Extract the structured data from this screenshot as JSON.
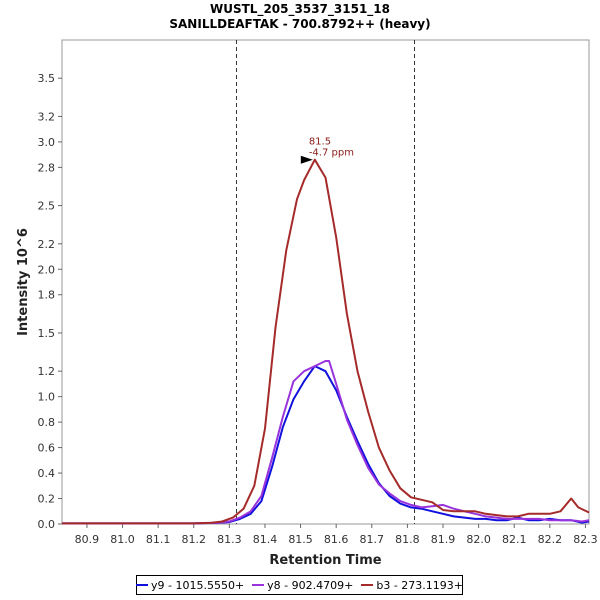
{
  "chart_data": {
    "type": "line",
    "title": "WUSTL_205_3537_3151_18",
    "subtitle": "SANILLDEAFTAK - 700.8792++ (heavy)",
    "xlabel": "Retention Time",
    "ylabel": "Intensity 10^6",
    "xlim": [
      80.83,
      82.31
    ],
    "ylim": [
      0,
      3.8
    ],
    "x_ticks": [
      "80.9",
      "81.0",
      "81.1",
      "81.2",
      "81.3",
      "81.4",
      "81.5",
      "81.6",
      "81.7",
      "81.8",
      "81.9",
      "82.0",
      "82.1",
      "82.2",
      "82.3"
    ],
    "y_ticks": [
      "0.0",
      "0.2",
      "0.4",
      "0.6",
      "0.8",
      "1.0",
      "1.2",
      "1.5",
      "1.8",
      "2.0",
      "2.2",
      "2.5",
      "2.8",
      "3.0",
      "3.2",
      "3.5"
    ],
    "boundary_lines": [
      81.32,
      81.82
    ],
    "annotation": {
      "x": 81.54,
      "y": 2.86,
      "lines": [
        "81.5",
        "-4.7 ppm"
      ],
      "color": "#8b1a1a"
    },
    "grid": false,
    "legend_position": "bottom",
    "series": [
      {
        "name": "y9 - 1015.5550+",
        "color": "#1111dd",
        "x": [
          80.83,
          81.2,
          81.27,
          81.3,
          81.33,
          81.36,
          81.39,
          81.42,
          81.45,
          81.48,
          81.51,
          81.54,
          81.57,
          81.6,
          81.63,
          81.66,
          81.69,
          81.72,
          81.75,
          81.78,
          81.81,
          81.84,
          81.87,
          81.9,
          81.93,
          81.96,
          81.99,
          82.02,
          82.05,
          82.08,
          82.11,
          82.14,
          82.17,
          82.2,
          82.23,
          82.26,
          82.29,
          82.31
        ],
        "y": [
          0.005,
          0.005,
          0.01,
          0.015,
          0.04,
          0.08,
          0.18,
          0.45,
          0.76,
          0.98,
          1.12,
          1.24,
          1.2,
          1.05,
          0.84,
          0.65,
          0.47,
          0.32,
          0.22,
          0.16,
          0.13,
          0.12,
          0.1,
          0.08,
          0.06,
          0.05,
          0.04,
          0.04,
          0.03,
          0.03,
          0.05,
          0.03,
          0.03,
          0.04,
          0.03,
          0.03,
          0.01,
          0.02
        ]
      },
      {
        "name": "y8 - 902.4709+",
        "color": "#9933dd",
        "x": [
          80.83,
          81.2,
          81.27,
          81.3,
          81.33,
          81.36,
          81.39,
          81.42,
          81.45,
          81.48,
          81.51,
          81.54,
          81.57,
          81.58,
          81.6,
          81.63,
          81.66,
          81.69,
          81.72,
          81.75,
          81.78,
          81.81,
          81.84,
          81.87,
          81.9,
          81.93,
          81.96,
          81.99,
          82.02,
          82.05,
          82.08,
          82.11,
          82.14,
          82.17,
          82.2,
          82.23,
          82.26,
          82.29,
          82.31
        ],
        "y": [
          0.005,
          0.005,
          0.01,
          0.02,
          0.05,
          0.1,
          0.22,
          0.52,
          0.84,
          1.12,
          1.2,
          1.24,
          1.28,
          1.28,
          1.1,
          0.82,
          0.62,
          0.44,
          0.31,
          0.24,
          0.18,
          0.15,
          0.13,
          0.14,
          0.15,
          0.12,
          0.1,
          0.08,
          0.06,
          0.05,
          0.04,
          0.04,
          0.04,
          0.04,
          0.03,
          0.03,
          0.03,
          0.02,
          0.03
        ]
      },
      {
        "name": "b3 - 273.1193+",
        "color": "#a52a2a",
        "x": [
          80.83,
          81.2,
          81.25,
          81.28,
          81.31,
          81.34,
          81.37,
          81.4,
          81.43,
          81.46,
          81.49,
          81.51,
          81.54,
          81.57,
          81.6,
          81.63,
          81.66,
          81.69,
          81.72,
          81.75,
          81.78,
          81.81,
          81.84,
          81.87,
          81.9,
          81.93,
          81.96,
          81.99,
          82.02,
          82.05,
          82.08,
          82.11,
          82.14,
          82.17,
          82.2,
          82.23,
          82.26,
          82.28,
          82.31
        ],
        "y": [
          0.005,
          0.005,
          0.01,
          0.02,
          0.05,
          0.12,
          0.3,
          0.75,
          1.55,
          2.15,
          2.55,
          2.7,
          2.86,
          2.72,
          2.25,
          1.65,
          1.2,
          0.88,
          0.6,
          0.42,
          0.28,
          0.21,
          0.19,
          0.17,
          0.11,
          0.1,
          0.1,
          0.1,
          0.08,
          0.07,
          0.06,
          0.06,
          0.08,
          0.08,
          0.08,
          0.1,
          0.2,
          0.13,
          0.09
        ]
      }
    ]
  }
}
